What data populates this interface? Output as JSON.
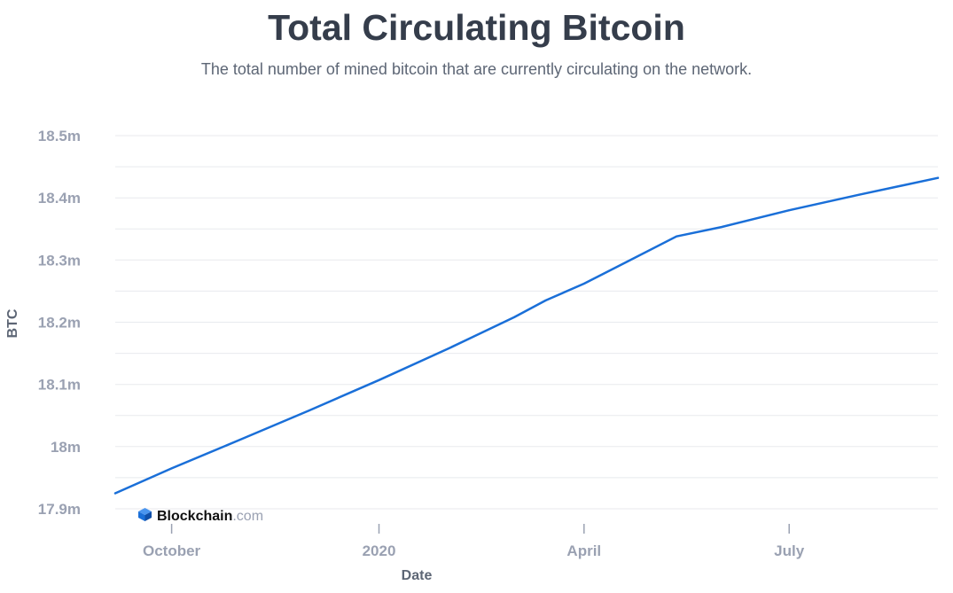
{
  "chart_data": {
    "type": "line",
    "title": "Total Circulating Bitcoin",
    "subtitle": "The total number of mined bitcoin that are currently circulating on the network.",
    "xlabel": "Date",
    "ylabel": "BTC",
    "grid": true,
    "legend": "none",
    "ylim": [
      17.9,
      18.5
    ],
    "xlim": [
      "2019-09-06",
      "2020-09-05"
    ],
    "y_ticks": [
      {
        "value": 18.5,
        "label": "18.5m"
      },
      {
        "value": 18.4,
        "label": "18.4m"
      },
      {
        "value": 18.3,
        "label": "18.3m"
      },
      {
        "value": 18.2,
        "label": "18.2m"
      },
      {
        "value": 18.1,
        "label": "18.1m"
      },
      {
        "value": 18.0,
        "label": "18m"
      },
      {
        "value": 17.9,
        "label": "17.9m"
      }
    ],
    "x_ticks": [
      {
        "date": "2019-10-01",
        "label": "October"
      },
      {
        "date": "2020-01-01",
        "label": "2020"
      },
      {
        "date": "2020-04-01",
        "label": "April"
      },
      {
        "date": "2020-07-01",
        "label": "July"
      }
    ],
    "series": [
      {
        "color": "#1a6fd8",
        "x": [
          "2019-09-06",
          "2019-10-01",
          "2019-11-01",
          "2019-12-01",
          "2020-01-01",
          "2020-02-01",
          "2020-03-01",
          "2020-03-15",
          "2020-04-01",
          "2020-04-20",
          "2020-05-12",
          "2020-06-01",
          "2020-07-01",
          "2020-08-01",
          "2020-09-05"
        ],
        "y": [
          17.925,
          17.965,
          18.012,
          18.058,
          18.107,
          18.158,
          18.208,
          18.235,
          18.262,
          18.297,
          18.338,
          18.353,
          18.38,
          18.405,
          18.432
        ]
      }
    ]
  },
  "brand": {
    "name": "Blockchain",
    "suffix": ".com",
    "icon": "cube-icon",
    "color": "#1a6fd8"
  }
}
